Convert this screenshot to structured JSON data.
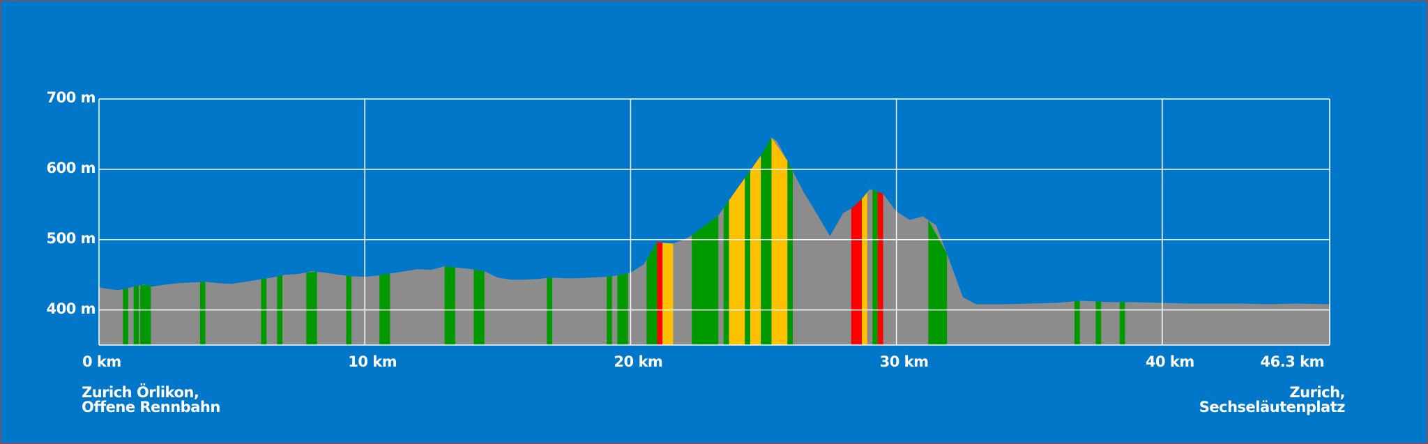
{
  "chart_data": {
    "type": "area",
    "title": "",
    "xlabel": "",
    "ylabel": "",
    "xlim": [
      0,
      46.3
    ],
    "ylim": [
      350,
      700
    ],
    "x_ticks": [
      {
        "value": 0,
        "label": "0 km"
      },
      {
        "value": 10,
        "label": "10 km"
      },
      {
        "value": 20,
        "label": "20 km"
      },
      {
        "value": 30,
        "label": "30 km"
      },
      {
        "value": 40,
        "label": "40 km"
      },
      {
        "value": 46.3,
        "label": "46.3 km"
      }
    ],
    "y_ticks": [
      {
        "value": 400,
        "label": "400 m"
      },
      {
        "value": 500,
        "label": "500 m"
      },
      {
        "value": 600,
        "label": "600 m"
      },
      {
        "value": 700,
        "label": "700 m"
      }
    ],
    "grid": true,
    "colors": {
      "background": "#0077c8",
      "profile": "#8c8c8c",
      "gentle": "#009a00",
      "moderate": "#ffc000",
      "steep": "#ff0000",
      "grid": "#ffffff"
    },
    "series": [
      {
        "x": [
          0,
          0.3,
          0.7,
          1.0,
          1.3,
          1.7,
          2.0,
          2.5,
          3.0,
          3.5,
          4.0,
          4.5,
          5.0,
          5.5,
          6.0,
          6.5,
          7.0,
          7.5,
          8.0,
          8.5,
          9.0,
          9.5,
          10.0,
          10.5,
          11.0,
          11.5,
          12.0,
          12.5,
          13.0,
          13.5,
          14.0,
          14.5,
          15.0,
          15.5,
          16.0,
          16.5,
          17.0,
          17.5,
          18.0,
          18.5,
          19.0,
          19.5,
          20.0,
          20.5,
          21.0,
          21.5,
          22.0,
          22.5,
          23.0,
          23.5,
          24.0,
          24.5,
          25.0,
          25.3,
          25.5,
          26.0,
          26.5,
          27.0,
          27.5,
          28.0,
          28.5,
          29.0,
          29.5,
          30.0,
          30.5,
          31.0,
          31.5,
          32.0,
          32.5,
          33.0,
          34.0,
          35.0,
          36.0,
          37.0,
          38.0,
          39.0,
          40.0,
          41.0,
          42.0,
          43.0,
          44.0,
          45.0,
          46.3
        ],
        "y": [
          432,
          430,
          428,
          430,
          433,
          436,
          433,
          436,
          438,
          439,
          440,
          438,
          437,
          440,
          443,
          446,
          450,
          451,
          455,
          453,
          450,
          448,
          447,
          449,
          452,
          455,
          458,
          457,
          462,
          460,
          458,
          455,
          446,
          443,
          443,
          444,
          446,
          445,
          445,
          446,
          447,
          449,
          453,
          465,
          497,
          493,
          500,
          510,
          518,
          545,
          572,
          598,
          625,
          645,
          640,
          605,
          568,
          537,
          505,
          538,
          548,
          572,
          565,
          540,
          528,
          533,
          520,
          470,
          418,
          408,
          408,
          409,
          410,
          413,
          411,
          411,
          410,
          409,
          409,
          409,
          408,
          409,
          408
        ]
      }
    ],
    "segments": [
      {
        "from": 0.9,
        "to": 1.1,
        "grade": "gentle"
      },
      {
        "from": 1.3,
        "to": 1.5,
        "grade": "gentle"
      },
      {
        "from": 1.55,
        "to": 1.75,
        "grade": "gentle"
      },
      {
        "from": 1.75,
        "to": 1.95,
        "grade": "gentle"
      },
      {
        "from": 3.8,
        "to": 4.0,
        "grade": "gentle"
      },
      {
        "from": 6.1,
        "to": 6.3,
        "grade": "gentle"
      },
      {
        "from": 6.7,
        "to": 6.9,
        "grade": "gentle"
      },
      {
        "from": 7.8,
        "to": 8.2,
        "grade": "gentle"
      },
      {
        "from": 9.3,
        "to": 9.5,
        "grade": "gentle"
      },
      {
        "from": 10.55,
        "to": 10.95,
        "grade": "gentle"
      },
      {
        "from": 13.0,
        "to": 13.4,
        "grade": "gentle"
      },
      {
        "from": 14.1,
        "to": 14.5,
        "grade": "gentle"
      },
      {
        "from": 16.85,
        "to": 17.05,
        "grade": "gentle"
      },
      {
        "from": 19.1,
        "to": 19.3,
        "grade": "gentle"
      },
      {
        "from": 19.5,
        "to": 19.9,
        "grade": "gentle"
      },
      {
        "from": 20.6,
        "to": 21.0,
        "grade": "gentle"
      },
      {
        "from": 21.0,
        "to": 21.2,
        "grade": "steep"
      },
      {
        "from": 21.2,
        "to": 21.6,
        "grade": "moderate"
      },
      {
        "from": 22.3,
        "to": 23.3,
        "grade": "gentle"
      },
      {
        "from": 23.5,
        "to": 23.7,
        "grade": "gentle"
      },
      {
        "from": 23.7,
        "to": 24.3,
        "grade": "moderate"
      },
      {
        "from": 24.3,
        "to": 24.5,
        "grade": "gentle"
      },
      {
        "from": 24.5,
        "to": 24.9,
        "grade": "moderate"
      },
      {
        "from": 24.9,
        "to": 25.3,
        "grade": "gentle"
      },
      {
        "from": 25.3,
        "to": 25.9,
        "grade": "moderate"
      },
      {
        "from": 25.9,
        "to": 26.1,
        "grade": "gentle"
      },
      {
        "from": 28.3,
        "to": 28.7,
        "grade": "steep"
      },
      {
        "from": 28.7,
        "to": 28.9,
        "grade": "moderate"
      },
      {
        "from": 29.1,
        "to": 29.3,
        "grade": "gentle"
      },
      {
        "from": 29.3,
        "to": 29.5,
        "grade": "steep"
      },
      {
        "from": 31.2,
        "to": 31.9,
        "grade": "gentle"
      },
      {
        "from": 36.7,
        "to": 36.9,
        "grade": "gentle"
      },
      {
        "from": 37.5,
        "to": 37.7,
        "grade": "gentle"
      },
      {
        "from": 38.4,
        "to": 38.6,
        "grade": "gentle"
      }
    ]
  },
  "places": {
    "start_line1": "Zurich Örlikon,",
    "start_line2": "Offene Rennbahn",
    "end_line1": "Zurich,",
    "end_line2": "Sechseläutenplatz"
  }
}
